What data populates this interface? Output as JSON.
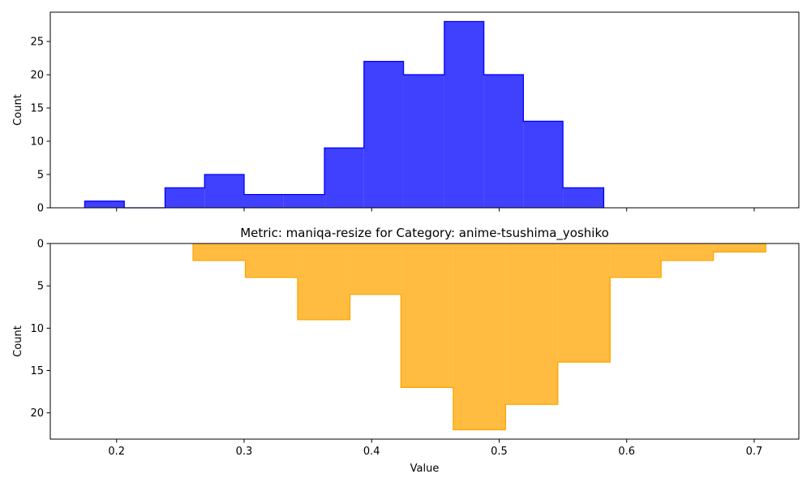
{
  "chart_data": [
    {
      "type": "histogram-step",
      "title": "",
      "xlabel": "",
      "ylabel": "Count",
      "color": "#0000ff",
      "fill_opacity": 0.75,
      "xlim": [
        0.148,
        0.735
      ],
      "ylim": [
        0,
        29.4
      ],
      "inverted_y": false,
      "x_ticks": [
        "0.2",
        "0.3",
        "0.4",
        "0.5",
        "0.6",
        "0.7"
      ],
      "x_tick_labels_shown": false,
      "y_ticks": [
        "0",
        "5",
        "10",
        "15",
        "20",
        "25"
      ],
      "bin_edges": [
        0.175,
        0.206,
        0.238,
        0.269,
        0.3,
        0.331,
        0.363,
        0.394,
        0.425,
        0.457,
        0.488,
        0.519,
        0.55,
        0.582
      ],
      "counts": [
        1,
        0,
        3,
        5,
        2,
        2,
        9,
        22,
        20,
        28,
        20,
        13,
        3
      ]
    },
    {
      "type": "histogram-step",
      "title": "Metric: maniqa-resize for Category: anime-tsushima_yoshiko",
      "xlabel": "Value",
      "ylabel": "Count",
      "color": "#ffa500",
      "fill_opacity": 0.75,
      "xlim": [
        0.148,
        0.735
      ],
      "ylim": [
        0,
        23.1
      ],
      "inverted_y": true,
      "x_ticks": [
        "0.2",
        "0.3",
        "0.4",
        "0.5",
        "0.6",
        "0.7"
      ],
      "x_tick_labels_shown": true,
      "y_ticks": [
        "0",
        "5",
        "10",
        "15",
        "20"
      ],
      "bin_edges": [
        0.26,
        0.301,
        0.342,
        0.383,
        0.423,
        0.464,
        0.505,
        0.546,
        0.587,
        0.627,
        0.668,
        0.709
      ],
      "counts": [
        2,
        4,
        9,
        6,
        17,
        22,
        19,
        14,
        4,
        2,
        1
      ]
    }
  ]
}
